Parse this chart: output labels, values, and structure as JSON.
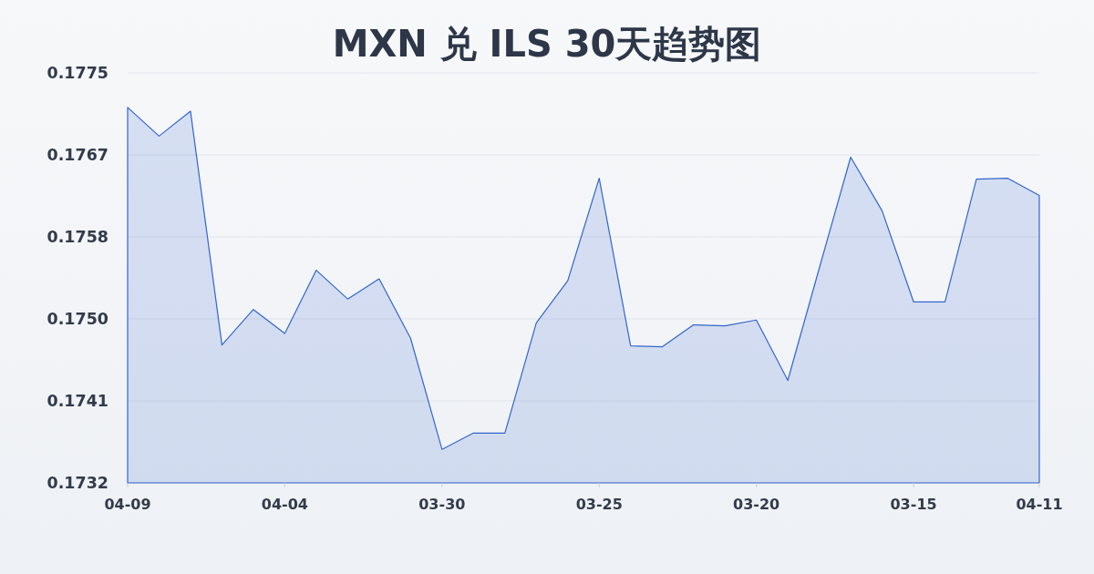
{
  "chart_data": {
    "type": "area",
    "title": "MXN 兑 ILS 30天趋势图",
    "categories": [
      "04-09",
      null,
      null,
      null,
      null,
      "04-04",
      null,
      null,
      null,
      null,
      "03-30",
      null,
      null,
      null,
      null,
      "03-25",
      null,
      null,
      null,
      null,
      "03-20",
      null,
      null,
      null,
      null,
      "03-15",
      null,
      null,
      null,
      "04-11"
    ],
    "values": [
      0.17716,
      0.17686,
      0.17712,
      0.17468,
      0.17505,
      0.1748,
      0.17546,
      0.17516,
      0.17537,
      0.17475,
      0.17359,
      0.17376,
      0.17376,
      0.17491,
      0.17535,
      0.17642,
      0.17467,
      0.17466,
      0.17489,
      0.17488,
      0.17494,
      0.17431,
      0.17548,
      0.17664,
      0.17608,
      0.17513,
      0.17513,
      0.17641,
      0.17642,
      0.17624
    ],
    "color": "#3366cc",
    "ylim": [
      0.17324,
      0.17752
    ],
    "yticks": [
      {
        "value": 0.17324,
        "label": "0.1732"
      },
      {
        "value": 0.174096,
        "label": "0.1741"
      },
      {
        "value": 0.174952,
        "label": "0.1750"
      },
      {
        "value": 0.175808,
        "label": "0.1758"
      },
      {
        "value": 0.176664,
        "label": "0.1767"
      },
      {
        "value": 0.17752,
        "label": "0.1775"
      }
    ],
    "grid": "y"
  }
}
